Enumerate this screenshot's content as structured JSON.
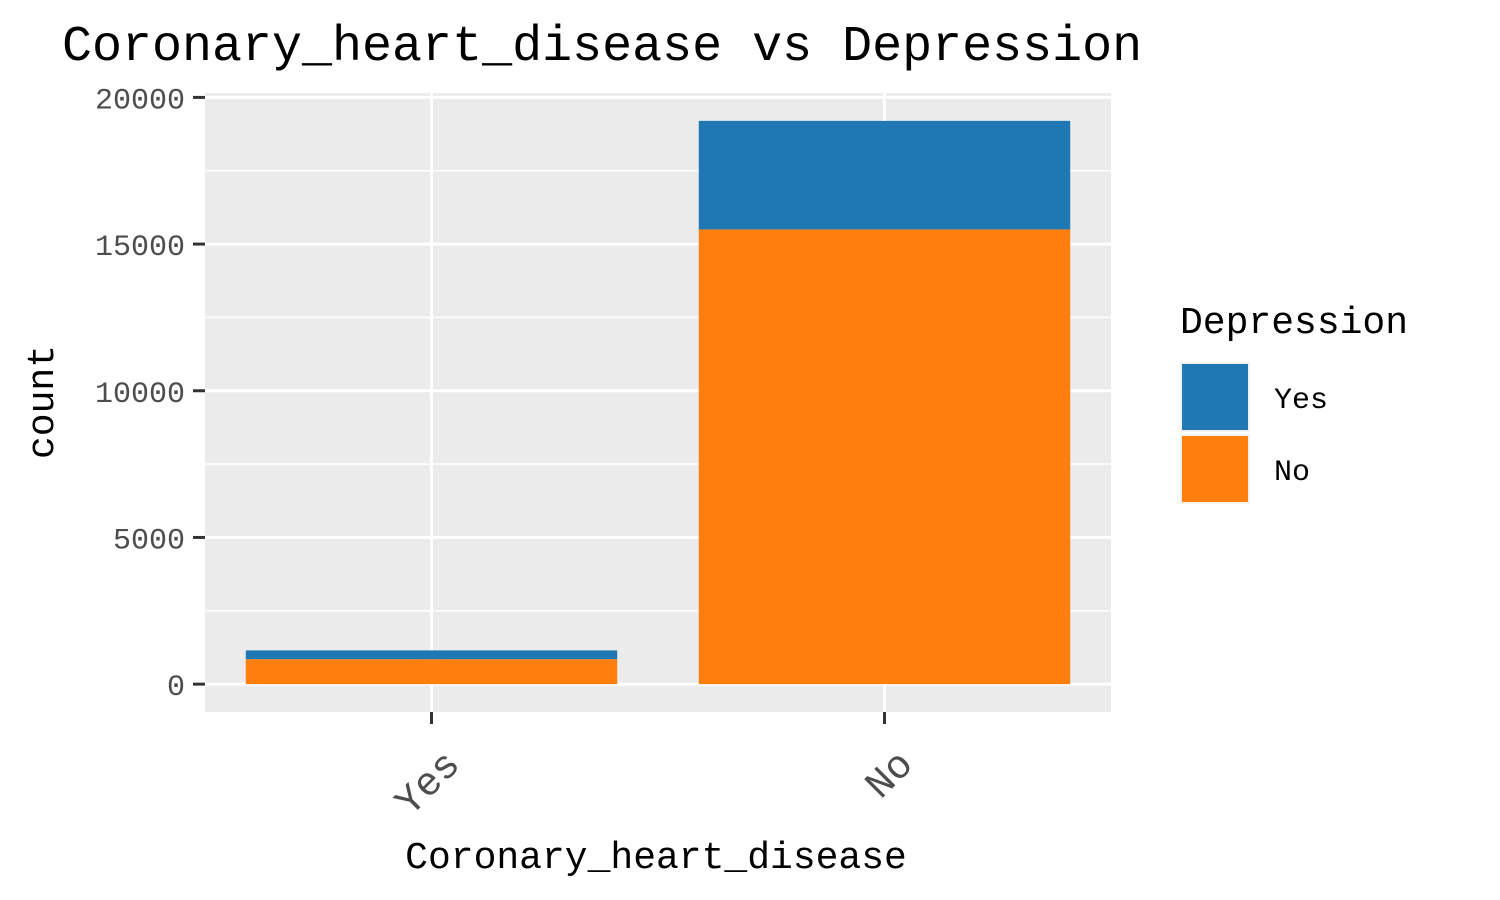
{
  "chart_data": {
    "type": "bar",
    "stacked": true,
    "title": "Coronary_heart_disease vs Depression",
    "xlabel": "Coronary_heart_disease",
    "ylabel": "count",
    "categories": [
      "Yes",
      "No"
    ],
    "series": [
      {
        "name": "Yes",
        "color": "#1f77b4",
        "values": [
          300,
          3700
        ]
      },
      {
        "name": "No",
        "color": "#ff7f0e",
        "values": [
          850,
          15500
        ]
      }
    ],
    "yticks": [
      0,
      5000,
      10000,
      15000,
      20000
    ],
    "ytick_labels": [
      "0",
      "5000",
      "10000",
      "15000",
      "20000"
    ],
    "ylim": [
      -950,
      20150
    ],
    "grid": true,
    "legend": {
      "title": "Depression",
      "position": "right",
      "entries": [
        "Yes",
        "No"
      ]
    }
  }
}
